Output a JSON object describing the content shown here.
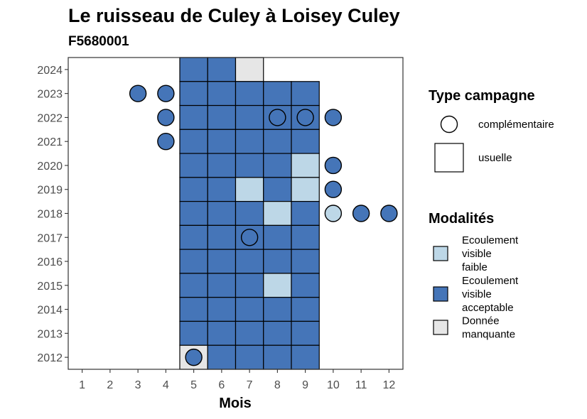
{
  "chart_data": {
    "type": "heatmap",
    "title": "Le ruisseau de Culey à Loisey Culey",
    "subtitle": "F5680001",
    "xlabel": "Mois",
    "ylabel": "",
    "x_ticks": [
      "1",
      "2",
      "3",
      "4",
      "5",
      "6",
      "7",
      "8",
      "9",
      "10",
      "11",
      "12"
    ],
    "y_ticks": [
      "2012",
      "2013",
      "2014",
      "2015",
      "2016",
      "2017",
      "2018",
      "2019",
      "2020",
      "2021",
      "2022",
      "2023",
      "2024"
    ],
    "xlim": [
      0.5,
      12.5
    ],
    "ylim": [
      2011.5,
      2024.5
    ],
    "grid": false,
    "legend_position": "right",
    "colors": {
      "Ecoulement visible faible": "#bdd7e7",
      "Ecoulement visible acceptable": "#4575b8",
      "Donnée manquante": "#e6e6e6"
    },
    "legends": [
      {
        "title": "Type campagne",
        "entries": [
          {
            "shape": "circle",
            "label": "complémentaire"
          },
          {
            "shape": "square",
            "label": "usuelle"
          }
        ]
      },
      {
        "title": "Modalités",
        "entries": [
          {
            "key": "Ecoulement visible faible",
            "lines": [
              "Ecoulement",
              "visible",
              "faible"
            ]
          },
          {
            "key": "Ecoulement visible acceptable",
            "lines": [
              "Ecoulement",
              "visible",
              "acceptable"
            ]
          },
          {
            "key": "Donnée manquante",
            "lines": [
              "Donnée",
              "manquante"
            ]
          }
        ]
      }
    ],
    "tiles": [
      {
        "year": 2024,
        "month": 5,
        "value": "Ecoulement visible acceptable"
      },
      {
        "year": 2024,
        "month": 6,
        "value": "Ecoulement visible acceptable"
      },
      {
        "year": 2024,
        "month": 7,
        "value": "Donnée manquante"
      },
      {
        "year": 2023,
        "month": 5,
        "value": "Ecoulement visible acceptable"
      },
      {
        "year": 2023,
        "month": 6,
        "value": "Ecoulement visible acceptable"
      },
      {
        "year": 2023,
        "month": 7,
        "value": "Ecoulement visible acceptable"
      },
      {
        "year": 2023,
        "month": 8,
        "value": "Ecoulement visible acceptable"
      },
      {
        "year": 2023,
        "month": 9,
        "value": "Ecoulement visible acceptable"
      },
      {
        "year": 2022,
        "month": 5,
        "value": "Ecoulement visible acceptable"
      },
      {
        "year": 2022,
        "month": 6,
        "value": "Ecoulement visible acceptable"
      },
      {
        "year": 2022,
        "month": 7,
        "value": "Ecoulement visible acceptable"
      },
      {
        "year": 2022,
        "month": 8,
        "value": "Ecoulement visible acceptable"
      },
      {
        "year": 2022,
        "month": 9,
        "value": "Ecoulement visible acceptable"
      },
      {
        "year": 2021,
        "month": 5,
        "value": "Ecoulement visible acceptable"
      },
      {
        "year": 2021,
        "month": 6,
        "value": "Ecoulement visible acceptable"
      },
      {
        "year": 2021,
        "month": 7,
        "value": "Ecoulement visible acceptable"
      },
      {
        "year": 2021,
        "month": 8,
        "value": "Ecoulement visible acceptable"
      },
      {
        "year": 2021,
        "month": 9,
        "value": "Ecoulement visible acceptable"
      },
      {
        "year": 2020,
        "month": 5,
        "value": "Ecoulement visible acceptable"
      },
      {
        "year": 2020,
        "month": 6,
        "value": "Ecoulement visible acceptable"
      },
      {
        "year": 2020,
        "month": 7,
        "value": "Ecoulement visible acceptable"
      },
      {
        "year": 2020,
        "month": 8,
        "value": "Ecoulement visible acceptable"
      },
      {
        "year": 2020,
        "month": 9,
        "value": "Ecoulement visible faible"
      },
      {
        "year": 2019,
        "month": 5,
        "value": "Ecoulement visible acceptable"
      },
      {
        "year": 2019,
        "month": 6,
        "value": "Ecoulement visible acceptable"
      },
      {
        "year": 2019,
        "month": 7,
        "value": "Ecoulement visible faible"
      },
      {
        "year": 2019,
        "month": 8,
        "value": "Ecoulement visible acceptable"
      },
      {
        "year": 2019,
        "month": 9,
        "value": "Ecoulement visible faible"
      },
      {
        "year": 2018,
        "month": 5,
        "value": "Ecoulement visible acceptable"
      },
      {
        "year": 2018,
        "month": 6,
        "value": "Ecoulement visible acceptable"
      },
      {
        "year": 2018,
        "month": 7,
        "value": "Ecoulement visible acceptable"
      },
      {
        "year": 2018,
        "month": 8,
        "value": "Ecoulement visible faible"
      },
      {
        "year": 2018,
        "month": 9,
        "value": "Ecoulement visible acceptable"
      },
      {
        "year": 2017,
        "month": 5,
        "value": "Ecoulement visible acceptable"
      },
      {
        "year": 2017,
        "month": 6,
        "value": "Ecoulement visible acceptable"
      },
      {
        "year": 2017,
        "month": 7,
        "value": "Ecoulement visible acceptable"
      },
      {
        "year": 2017,
        "month": 8,
        "value": "Ecoulement visible acceptable"
      },
      {
        "year": 2017,
        "month": 9,
        "value": "Ecoulement visible acceptable"
      },
      {
        "year": 2016,
        "month": 5,
        "value": "Ecoulement visible acceptable"
      },
      {
        "year": 2016,
        "month": 6,
        "value": "Ecoulement visible acceptable"
      },
      {
        "year": 2016,
        "month": 7,
        "value": "Ecoulement visible acceptable"
      },
      {
        "year": 2016,
        "month": 8,
        "value": "Ecoulement visible acceptable"
      },
      {
        "year": 2016,
        "month": 9,
        "value": "Ecoulement visible acceptable"
      },
      {
        "year": 2015,
        "month": 5,
        "value": "Ecoulement visible acceptable"
      },
      {
        "year": 2015,
        "month": 6,
        "value": "Ecoulement visible acceptable"
      },
      {
        "year": 2015,
        "month": 7,
        "value": "Ecoulement visible acceptable"
      },
      {
        "year": 2015,
        "month": 8,
        "value": "Ecoulement visible faible"
      },
      {
        "year": 2015,
        "month": 9,
        "value": "Ecoulement visible acceptable"
      },
      {
        "year": 2014,
        "month": 5,
        "value": "Ecoulement visible acceptable"
      },
      {
        "year": 2014,
        "month": 6,
        "value": "Ecoulement visible acceptable"
      },
      {
        "year": 2014,
        "month": 7,
        "value": "Ecoulement visible acceptable"
      },
      {
        "year": 2014,
        "month": 8,
        "value": "Ecoulement visible acceptable"
      },
      {
        "year": 2014,
        "month": 9,
        "value": "Ecoulement visible acceptable"
      },
      {
        "year": 2013,
        "month": 5,
        "value": "Ecoulement visible acceptable"
      },
      {
        "year": 2013,
        "month": 6,
        "value": "Ecoulement visible acceptable"
      },
      {
        "year": 2013,
        "month": 7,
        "value": "Ecoulement visible acceptable"
      },
      {
        "year": 2013,
        "month": 8,
        "value": "Ecoulement visible acceptable"
      },
      {
        "year": 2013,
        "month": 9,
        "value": "Ecoulement visible acceptable"
      },
      {
        "year": 2012,
        "month": 5,
        "value": "Donnée manquante"
      },
      {
        "year": 2012,
        "month": 6,
        "value": "Ecoulement visible acceptable"
      },
      {
        "year": 2012,
        "month": 7,
        "value": "Ecoulement visible acceptable"
      },
      {
        "year": 2012,
        "month": 8,
        "value": "Ecoulement visible acceptable"
      },
      {
        "year": 2012,
        "month": 9,
        "value": "Ecoulement visible acceptable"
      }
    ],
    "points": [
      {
        "year": 2023,
        "month": 3,
        "value": "Ecoulement visible acceptable"
      },
      {
        "year": 2023,
        "month": 4,
        "value": "Ecoulement visible acceptable"
      },
      {
        "year": 2022,
        "month": 4,
        "value": "Ecoulement visible acceptable"
      },
      {
        "year": 2022,
        "month": 8,
        "value": "Ecoulement visible acceptable"
      },
      {
        "year": 2022,
        "month": 9,
        "value": "Ecoulement visible acceptable"
      },
      {
        "year": 2022,
        "month": 10,
        "value": "Ecoulement visible acceptable"
      },
      {
        "year": 2021,
        "month": 4,
        "value": "Ecoulement visible acceptable"
      },
      {
        "year": 2020,
        "month": 10,
        "value": "Ecoulement visible acceptable"
      },
      {
        "year": 2019,
        "month": 10,
        "value": "Ecoulement visible acceptable"
      },
      {
        "year": 2018,
        "month": 10,
        "value": "Ecoulement visible faible"
      },
      {
        "year": 2018,
        "month": 11,
        "value": "Ecoulement visible acceptable"
      },
      {
        "year": 2018,
        "month": 12,
        "value": "Ecoulement visible acceptable"
      },
      {
        "year": 2017,
        "month": 7,
        "value": "Ecoulement visible acceptable"
      },
      {
        "year": 2012,
        "month": 5,
        "value": "Ecoulement visible acceptable"
      }
    ]
  }
}
